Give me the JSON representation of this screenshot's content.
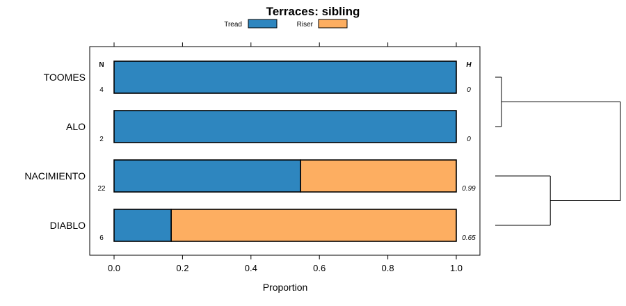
{
  "chart_data": {
    "type": "bar",
    "orientation": "horizontal",
    "stacked": true,
    "title": "Terraces: sibling",
    "xlabel": "Proportion",
    "ylabel": "",
    "xlim": [
      0,
      1
    ],
    "xticks": [
      "0.0",
      "0.2",
      "0.4",
      "0.6",
      "0.8",
      "1.0"
    ],
    "xtick_values": [
      0,
      0.2,
      0.4,
      0.6,
      0.8,
      1.0
    ],
    "categories": [
      "TOOMES",
      "ALO",
      "NACIMIENTO",
      "DIABLO"
    ],
    "series": [
      {
        "name": "Tread",
        "color": "#2e86bf",
        "values": [
          1.0,
          1.0,
          0.545,
          0.167
        ]
      },
      {
        "name": "Riser",
        "color": "#fdae61",
        "values": [
          0.0,
          0.0,
          0.455,
          0.833
        ]
      }
    ],
    "n_header": "N",
    "n_values": [
      "4",
      "2",
      "22",
      "6"
    ],
    "h_header": "H",
    "h_values": [
      "0",
      "0",
      "0.99",
      "0.65"
    ],
    "legend_position": "top",
    "dendrogram": {
      "description": "TOOMES and ALO joined at low height; NACIMIENTO and DIABLO joined at moderate height; both clusters joined at top",
      "merges": [
        {
          "left": "TOOMES",
          "right": "ALO",
          "height": 0.05
        },
        {
          "left": "NACIMIENTO",
          "right": "DIABLO",
          "height": 0.44
        },
        {
          "left": "cluster1",
          "right": "cluster2",
          "height": 1.0
        }
      ]
    }
  }
}
